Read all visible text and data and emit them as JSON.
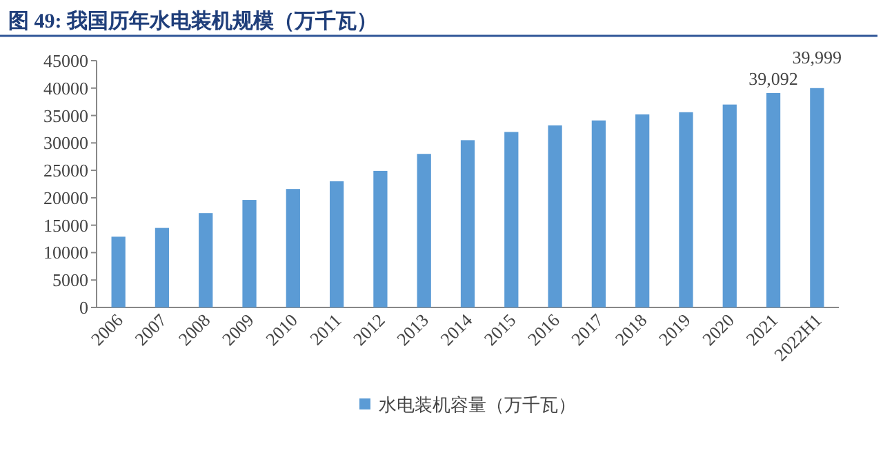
{
  "chart_data": {
    "type": "bar",
    "title": "图 49: 我国历年水电装机规模（万千瓦）",
    "categories": [
      "2006",
      "2007",
      "2008",
      "2009",
      "2010",
      "2011",
      "2012",
      "2013",
      "2014",
      "2015",
      "2016",
      "2017",
      "2018",
      "2019",
      "2020",
      "2021",
      "2022H1"
    ],
    "series": [
      {
        "name": "水电装机容量（万千瓦）",
        "color": "#5b9bd5",
        "values": [
          12900,
          14500,
          17200,
          19600,
          21600,
          23000,
          24900,
          28000,
          30500,
          32000,
          33200,
          34100,
          35200,
          35600,
          37000,
          39092,
          39999
        ],
        "value_labels": [
          null,
          null,
          null,
          null,
          null,
          null,
          null,
          null,
          null,
          null,
          null,
          null,
          null,
          null,
          null,
          "39,092",
          "39,999"
        ]
      }
    ],
    "ylim": [
      0,
      45000
    ],
    "yticks": [
      0,
      5000,
      10000,
      15000,
      20000,
      25000,
      30000,
      35000,
      40000,
      45000
    ],
    "grid": false,
    "legend": "bottom"
  }
}
